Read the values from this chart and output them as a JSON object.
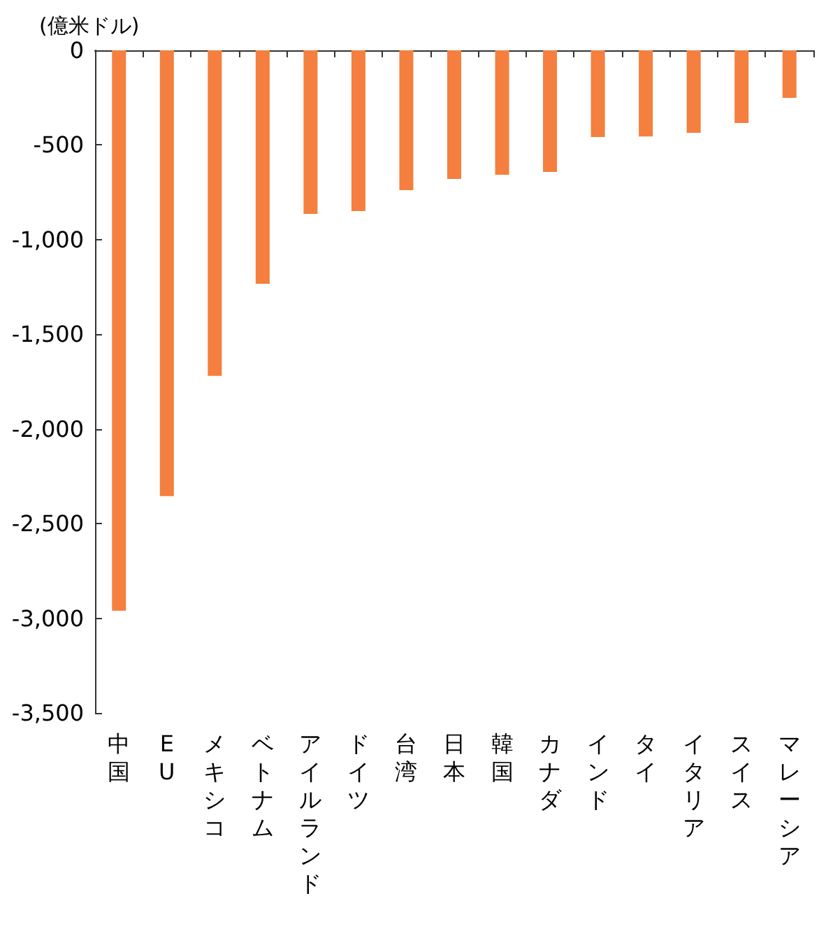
{
  "chart_data": {
    "type": "bar",
    "ylabel": "(億米ドル)",
    "categories": [
      "中国",
      "EU",
      "メキシコ",
      "ベトナム",
      "アイルランド",
      "ドイツ",
      "台湾",
      "日本",
      "韓国",
      "カナダ",
      "インド",
      "タイ",
      "イタリア",
      "スイス",
      "マレーシア"
    ],
    "series": [
      {
        "color": "#f47f3e",
        "values": [
          -2960,
          -2355,
          -1720,
          -1233,
          -864,
          -849,
          -738,
          -679,
          -657,
          -642,
          -458,
          -455,
          -436,
          -384,
          -251
        ]
      }
    ],
    "ylim": [
      -3500,
      0
    ],
    "yticks": [
      {
        "value": -3500,
        "label": "-3,500"
      },
      {
        "value": -3000,
        "label": "-3,000"
      },
      {
        "value": -2500,
        "label": "-2,500"
      },
      {
        "value": -2000,
        "label": "-2,000"
      },
      {
        "value": -1500,
        "label": "-1,500"
      },
      {
        "value": -1000,
        "label": "-1,000"
      },
      {
        "value": -500,
        "label": "-500"
      },
      0
    ],
    "grid": false
  }
}
